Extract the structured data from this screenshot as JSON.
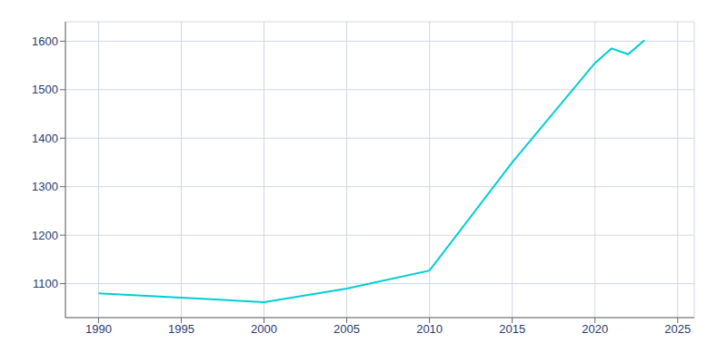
{
  "chart_data": {
    "type": "line",
    "x": [
      1990,
      1995,
      2000,
      2005,
      2010,
      2015,
      2020,
      2021,
      2022,
      2023
    ],
    "values": [
      1080,
      1071,
      1062,
      1090,
      1127,
      1350,
      1555,
      1585,
      1573,
      1602
    ],
    "color": "#00CED1",
    "xlim": [
      1988,
      2026
    ],
    "ylim": [
      1030,
      1640
    ],
    "xticks": [
      1990,
      1995,
      2000,
      2005,
      2010,
      2015,
      2020,
      2025
    ],
    "yticks": [
      1100,
      1200,
      1300,
      1400,
      1500,
      1600
    ],
    "grid": true
  }
}
